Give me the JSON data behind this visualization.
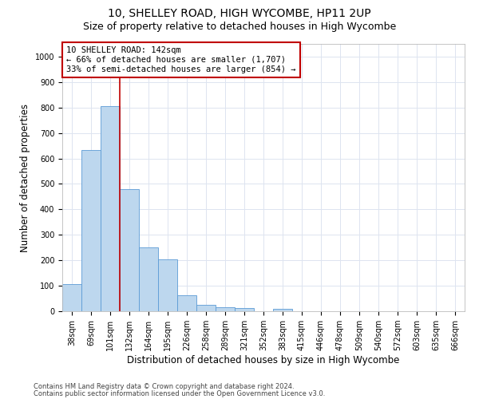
{
  "title1": "10, SHELLEY ROAD, HIGH WYCOMBE, HP11 2UP",
  "title2": "Size of property relative to detached houses in High Wycombe",
  "xlabel": "Distribution of detached houses by size in High Wycombe",
  "ylabel": "Number of detached properties",
  "categories": [
    "38sqm",
    "69sqm",
    "101sqm",
    "132sqm",
    "164sqm",
    "195sqm",
    "226sqm",
    "258sqm",
    "289sqm",
    "321sqm",
    "352sqm",
    "383sqm",
    "415sqm",
    "446sqm",
    "478sqm",
    "509sqm",
    "540sqm",
    "572sqm",
    "603sqm",
    "635sqm",
    "666sqm"
  ],
  "values": [
    108,
    632,
    805,
    478,
    250,
    204,
    62,
    25,
    17,
    12,
    0,
    8,
    0,
    0,
    0,
    0,
    0,
    0,
    0,
    0,
    0
  ],
  "bar_color": "#bdd7ee",
  "bar_edge_color": "#5b9bd5",
  "vline_bar_index": 3,
  "highlight_color": "#c00000",
  "annotation_line1": "10 SHELLEY ROAD: 142sqm",
  "annotation_line2": "← 66% of detached houses are smaller (1,707)",
  "annotation_line3": "33% of semi-detached houses are larger (854) →",
  "annotation_box_color": "#ffffff",
  "annotation_box_edge_color": "#c00000",
  "ylim": [
    0,
    1050
  ],
  "yticks": [
    0,
    100,
    200,
    300,
    400,
    500,
    600,
    700,
    800,
    900,
    1000
  ],
  "footnote1": "Contains HM Land Registry data © Crown copyright and database right 2024.",
  "footnote2": "Contains public sector information licensed under the Open Government Licence v3.0.",
  "bg_color": "#ffffff",
  "grid_color": "#dde4f0",
  "title1_fontsize": 10,
  "title2_fontsize": 9,
  "tick_fontsize": 7,
  "xlabel_fontsize": 8.5,
  "ylabel_fontsize": 8.5,
  "footnote_fontsize": 6,
  "annotation_fontsize": 7.5
}
